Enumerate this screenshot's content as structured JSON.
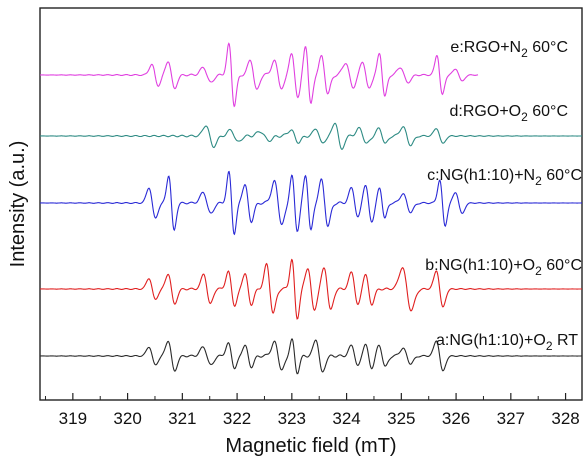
{
  "chart_data": {
    "type": "line",
    "title": "",
    "xlabel": "Magnetic field (mT)",
    "ylabel": "Intensity (a.u.)",
    "xlim": [
      318.4,
      328.3
    ],
    "x_ticks": [
      319,
      320,
      321,
      322,
      323,
      324,
      325,
      326,
      327,
      328
    ],
    "y_ticks": "none",
    "grid": false,
    "legend": "inline labels above each trace",
    "series": [
      {
        "name": "e:RGO+N2 60°C",
        "label_main": "e:RGO+N",
        "label_sub": "2",
        "label_tail": " 60°C",
        "color": "#e040e0",
        "baseline": 1.0,
        "amplitude": 0.9,
        "x_range": [
          318.4,
          326.4
        ],
        "peaks": [
          {
            "x": 320.5,
            "a": 0.35,
            "w": 0.06
          },
          {
            "x": 320.8,
            "a": 0.45,
            "w": 0.06
          },
          {
            "x": 321.45,
            "a": 0.25,
            "w": 0.07
          },
          {
            "x": 321.9,
            "a": 1.0,
            "w": 0.05
          },
          {
            "x": 322.3,
            "a": 0.5,
            "w": 0.06
          },
          {
            "x": 322.75,
            "a": 0.45,
            "w": 0.07
          },
          {
            "x": 323.05,
            "a": 0.7,
            "w": 0.06
          },
          {
            "x": 323.3,
            "a": 0.95,
            "w": 0.05
          },
          {
            "x": 323.6,
            "a": 0.6,
            "w": 0.06
          },
          {
            "x": 324.05,
            "a": 0.4,
            "w": 0.07
          },
          {
            "x": 324.35,
            "a": 0.45,
            "w": 0.06
          },
          {
            "x": 324.65,
            "a": 0.7,
            "w": 0.05
          },
          {
            "x": 325.05,
            "a": 0.25,
            "w": 0.07
          },
          {
            "x": 325.7,
            "a": 0.65,
            "w": 0.05
          },
          {
            "x": 326.05,
            "a": 0.2,
            "w": 0.06
          }
        ]
      },
      {
        "name": "d:RGO+O2 60°C",
        "label_main": "d:RGO+O",
        "label_sub": "2",
        "label_tail": " 60°C",
        "color": "#2e8b84",
        "baseline": 0.0,
        "amplitude": 0.9,
        "x_range": [
          318.4,
          328.3
        ],
        "peaks": [
          {
            "x": 321.5,
            "a": 0.35,
            "w": 0.07
          },
          {
            "x": 321.95,
            "a": 0.2,
            "w": 0.07
          },
          {
            "x": 322.5,
            "a": 0.15,
            "w": 0.08
          },
          {
            "x": 323.05,
            "a": 0.2,
            "w": 0.07
          },
          {
            "x": 323.5,
            "a": 0.25,
            "w": 0.06
          },
          {
            "x": 323.85,
            "a": 0.45,
            "w": 0.06
          },
          {
            "x": 324.3,
            "a": 0.25,
            "w": 0.07
          },
          {
            "x": 324.65,
            "a": 0.25,
            "w": 0.06
          },
          {
            "x": 325.1,
            "a": 0.3,
            "w": 0.07
          },
          {
            "x": 325.7,
            "a": 0.25,
            "w": 0.06
          }
        ]
      },
      {
        "name": "c:NG(h1:10)+N2 60°C",
        "label_main": "c:NG(h1:10)+N",
        "label_sub": "2",
        "label_tail": " 60°C",
        "color": "#2a2ad6",
        "baseline": -1.0,
        "amplitude": 0.9,
        "x_range": [
          318.4,
          328.3
        ],
        "peaks": [
          {
            "x": 320.45,
            "a": 0.5,
            "w": 0.06
          },
          {
            "x": 320.8,
            "a": 0.9,
            "w": 0.05
          },
          {
            "x": 321.45,
            "a": 0.35,
            "w": 0.07
          },
          {
            "x": 321.9,
            "a": 1.0,
            "w": 0.05
          },
          {
            "x": 322.2,
            "a": 0.6,
            "w": 0.06
          },
          {
            "x": 322.75,
            "a": 0.7,
            "w": 0.07
          },
          {
            "x": 323.05,
            "a": 0.9,
            "w": 0.05
          },
          {
            "x": 323.3,
            "a": 0.9,
            "w": 0.05
          },
          {
            "x": 323.6,
            "a": 0.75,
            "w": 0.06
          },
          {
            "x": 324.15,
            "a": 0.5,
            "w": 0.06
          },
          {
            "x": 324.4,
            "a": 0.6,
            "w": 0.06
          },
          {
            "x": 324.65,
            "a": 0.5,
            "w": 0.05
          },
          {
            "x": 325.1,
            "a": 0.3,
            "w": 0.07
          },
          {
            "x": 325.75,
            "a": 0.75,
            "w": 0.05
          },
          {
            "x": 326.05,
            "a": 0.35,
            "w": 0.06
          }
        ]
      },
      {
        "name": "b:NG(h1:10)+O2 60°C",
        "label_main": "b:NG(h1:10)+O",
        "label_sub": "2",
        "label_tail": " 60°C",
        "color": "#e02020",
        "baseline": -2.0,
        "amplitude": 0.9,
        "x_range": [
          318.4,
          328.3
        ],
        "peaks": [
          {
            "x": 320.45,
            "a": 0.35,
            "w": 0.06
          },
          {
            "x": 320.8,
            "a": 0.5,
            "w": 0.06
          },
          {
            "x": 321.45,
            "a": 0.5,
            "w": 0.06
          },
          {
            "x": 321.9,
            "a": 0.55,
            "w": 0.06
          },
          {
            "x": 322.2,
            "a": 0.5,
            "w": 0.06
          },
          {
            "x": 322.6,
            "a": 0.8,
            "w": 0.06
          },
          {
            "x": 323.05,
            "a": 0.95,
            "w": 0.05
          },
          {
            "x": 323.35,
            "a": 0.7,
            "w": 0.06
          },
          {
            "x": 323.65,
            "a": 0.7,
            "w": 0.06
          },
          {
            "x": 324.15,
            "a": 0.55,
            "w": 0.06
          },
          {
            "x": 324.4,
            "a": 0.5,
            "w": 0.06
          },
          {
            "x": 325.1,
            "a": 0.7,
            "w": 0.08
          },
          {
            "x": 325.7,
            "a": 0.6,
            "w": 0.06
          }
        ]
      },
      {
        "name": "a:NG(h1:10)+O2 RT",
        "label_main": "a:NG(h1:10)+O",
        "label_sub": "2",
        "label_tail": " RT",
        "color": "#2a2a2a",
        "baseline": -3.0,
        "amplitude": 0.9,
        "x_range": [
          318.4,
          328.3
        ],
        "peaks": [
          {
            "x": 320.45,
            "a": 0.3,
            "w": 0.06
          },
          {
            "x": 320.8,
            "a": 0.5,
            "w": 0.06
          },
          {
            "x": 321.45,
            "a": 0.3,
            "w": 0.07
          },
          {
            "x": 321.9,
            "a": 0.4,
            "w": 0.06
          },
          {
            "x": 322.2,
            "a": 0.35,
            "w": 0.06
          },
          {
            "x": 322.75,
            "a": 0.45,
            "w": 0.07
          },
          {
            "x": 323.05,
            "a": 0.55,
            "w": 0.05
          },
          {
            "x": 323.5,
            "a": 0.55,
            "w": 0.06
          },
          {
            "x": 324.15,
            "a": 0.35,
            "w": 0.06
          },
          {
            "x": 324.4,
            "a": 0.4,
            "w": 0.06
          },
          {
            "x": 324.65,
            "a": 0.35,
            "w": 0.06
          },
          {
            "x": 325.1,
            "a": 0.25,
            "w": 0.07
          },
          {
            "x": 325.7,
            "a": 0.5,
            "w": 0.06
          }
        ]
      }
    ]
  }
}
